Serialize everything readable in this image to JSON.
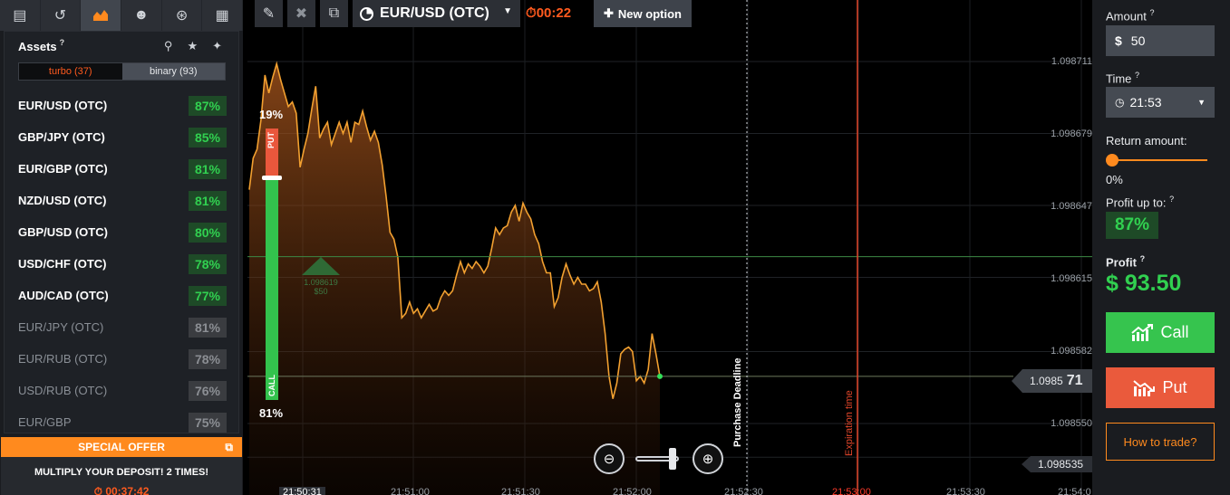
{
  "nav": {
    "icons": [
      "panel-icon",
      "history-icon",
      "chart-icon",
      "users-icon",
      "signal-icon",
      "news-icon"
    ]
  },
  "assets": {
    "title": "Assets",
    "help": "?",
    "tabs": {
      "turbo": "turbo (37)",
      "binary": "binary (93)"
    },
    "rows": [
      {
        "name": "EUR/USD (OTC)",
        "pct": "87%",
        "active": true
      },
      {
        "name": "GBP/JPY (OTC)",
        "pct": "85%",
        "active": true
      },
      {
        "name": "EUR/GBP (OTC)",
        "pct": "81%",
        "active": true
      },
      {
        "name": "NZD/USD (OTC)",
        "pct": "81%",
        "active": true
      },
      {
        "name": "GBP/USD (OTC)",
        "pct": "80%",
        "active": true
      },
      {
        "name": "USD/CHF (OTC)",
        "pct": "78%",
        "active": true
      },
      {
        "name": "AUD/CAD (OTC)",
        "pct": "77%",
        "active": true
      },
      {
        "name": "EUR/JPY (OTC)",
        "pct": "81%",
        "active": false
      },
      {
        "name": "EUR/RUB (OTC)",
        "pct": "78%",
        "active": false
      },
      {
        "name": "USD/RUB (OTC)",
        "pct": "76%",
        "active": false
      },
      {
        "name": "EUR/GBP",
        "pct": "75%",
        "active": false
      }
    ]
  },
  "offer": {
    "title": "SPECIAL OFFER",
    "text": "MULTIPLY YOUR DEPOSIT! 2 TIMES!",
    "timer": "00:37:42"
  },
  "toolbar": {
    "pair": "EUR/USD (OTC)",
    "timer": "00:22",
    "new_option": "New option"
  },
  "chart": {
    "price_labels": [
      "1.098711",
      "1.098679",
      "1.098647",
      "1.098615",
      "1.098582",
      "1.098550"
    ],
    "current_price_main": "1.0985",
    "current_price_tail": "71",
    "low_price": "1.098535",
    "time_labels": [
      "21:50:31",
      "21:51:00",
      "21:51:30",
      "21:52:00",
      "21:52:30",
      "21:53:00",
      "21:53:30",
      "21:54:0"
    ],
    "purchase_deadline": "Purchase Deadline",
    "expiration": "Expiration time",
    "sentiment": {
      "put": "19%",
      "call": "81%",
      "put_label": "PUT",
      "call_label": "CALL"
    },
    "trade_marker": {
      "price": "1.098619",
      "amount": "$50"
    },
    "series": {
      "name": "EUR/USD (OTC)",
      "values": [
        1.098654,
        1.098668,
        1.098672,
        1.098685,
        1.098705,
        1.098697,
        1.098704,
        1.09871,
        1.098703,
        1.098697,
        1.098691,
        1.098693,
        1.098688,
        1.098664,
        1.098672,
        1.098679,
        1.09869,
        1.0987,
        1.098677,
        1.098681,
        1.098684,
        1.098674,
        1.098679,
        1.098684,
        1.098679,
        1.098684,
        1.098675,
        1.098684,
        1.098683,
        1.098689,
        1.098682,
        1.098676,
        1.09868,
        1.098675,
        1.098665,
        1.098651,
        1.098635,
        1.098632,
        1.098624,
        1.098597,
        1.098599,
        1.098604,
        1.098599,
        1.098601,
        1.098597,
        1.0986,
        1.098603,
        1.0986,
        1.098601,
        1.098606,
        1.098609,
        1.098607,
        1.098609,
        1.098616,
        1.098622,
        1.098617,
        1.098621,
        1.098619,
        1.098622,
        1.09862,
        1.098617,
        1.09862,
        1.098628,
        1.098637,
        1.098634,
        1.098637,
        1.098638,
        1.098644,
        1.098647,
        1.09864,
        1.098648,
        1.098644,
        1.098641,
        1.098634,
        1.09863,
        1.098622,
        1.098617,
        1.098617,
        1.098602,
        1.098606,
        1.098615,
        1.098621,
        1.098616,
        1.098612,
        1.098615,
        1.098612,
        1.098612,
        1.098609,
        1.09861,
        1.098613,
        1.098604,
        1.09859,
        1.098571,
        1.098561,
        1.098568,
        1.098581,
        1.098583,
        1.098584,
        1.098582,
        1.098569,
        1.098571,
        1.098568,
        1.098574,
        1.09859,
        1.098581,
        1.098571
      ]
    }
  },
  "right": {
    "amount_label": "Amount",
    "amount_currency": "$",
    "amount_value": "50",
    "time_label": "Time",
    "time_value": "21:53",
    "return_label": "Return amount:",
    "return_value": "0%",
    "return_level": 0,
    "profit_up_label": "Profit up to:",
    "profit_up_value": "87%",
    "profit_label": "Profit",
    "profit_value": "$ 93.50",
    "call_label": "Call",
    "put_label": "Put",
    "how_label": "How to trade?"
  },
  "colors": {
    "accent": "#ff8a1e",
    "green": "#31d050",
    "red": "#ea5a3c"
  }
}
